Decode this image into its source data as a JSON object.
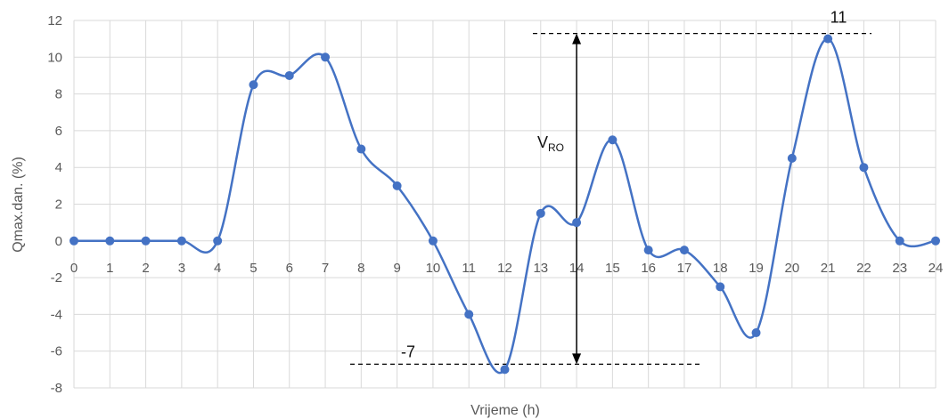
{
  "chart_data": {
    "type": "line",
    "xlabel": "Vrijeme (h)",
    "ylabel": "Qmax.dan. (%)",
    "xlim": [
      0,
      24
    ],
    "ylim": [
      -8,
      12
    ],
    "grid": true,
    "smooth": true,
    "line_color": "#4472C4",
    "x": [
      0,
      1,
      2,
      3,
      4,
      5,
      6,
      7,
      8,
      9,
      10,
      11,
      12,
      13,
      14,
      15,
      16,
      17,
      18,
      19,
      20,
      21,
      22,
      23,
      24
    ],
    "x_ticks": [
      "0",
      "1",
      "2",
      "3",
      "4",
      "5",
      "6",
      "7",
      "8",
      "9",
      "10",
      "11",
      "12",
      "13",
      "14",
      "15",
      "16",
      "17",
      "18",
      "19",
      "20",
      "21",
      "22",
      "23",
      "24"
    ],
    "y_ticks": [
      "-8",
      "-6",
      "-4",
      "-2",
      "0",
      "2",
      "4",
      "6",
      "8",
      "10",
      "12"
    ],
    "series": [
      {
        "values": [
          0,
          0,
          0,
          0,
          0,
          8.5,
          9,
          10,
          5,
          3,
          0,
          -4,
          -7,
          1.5,
          1,
          5.5,
          -0.5,
          -0.5,
          -2.5,
          -5,
          4.5,
          11,
          4,
          0,
          0
        ]
      }
    ],
    "annotations": {
      "max_label": "11",
      "min_label": "-7",
      "range_label_main": "V",
      "range_label_sub": "RO",
      "max_value": 11,
      "min_value": -7,
      "arrow_x": 14.0
    }
  }
}
